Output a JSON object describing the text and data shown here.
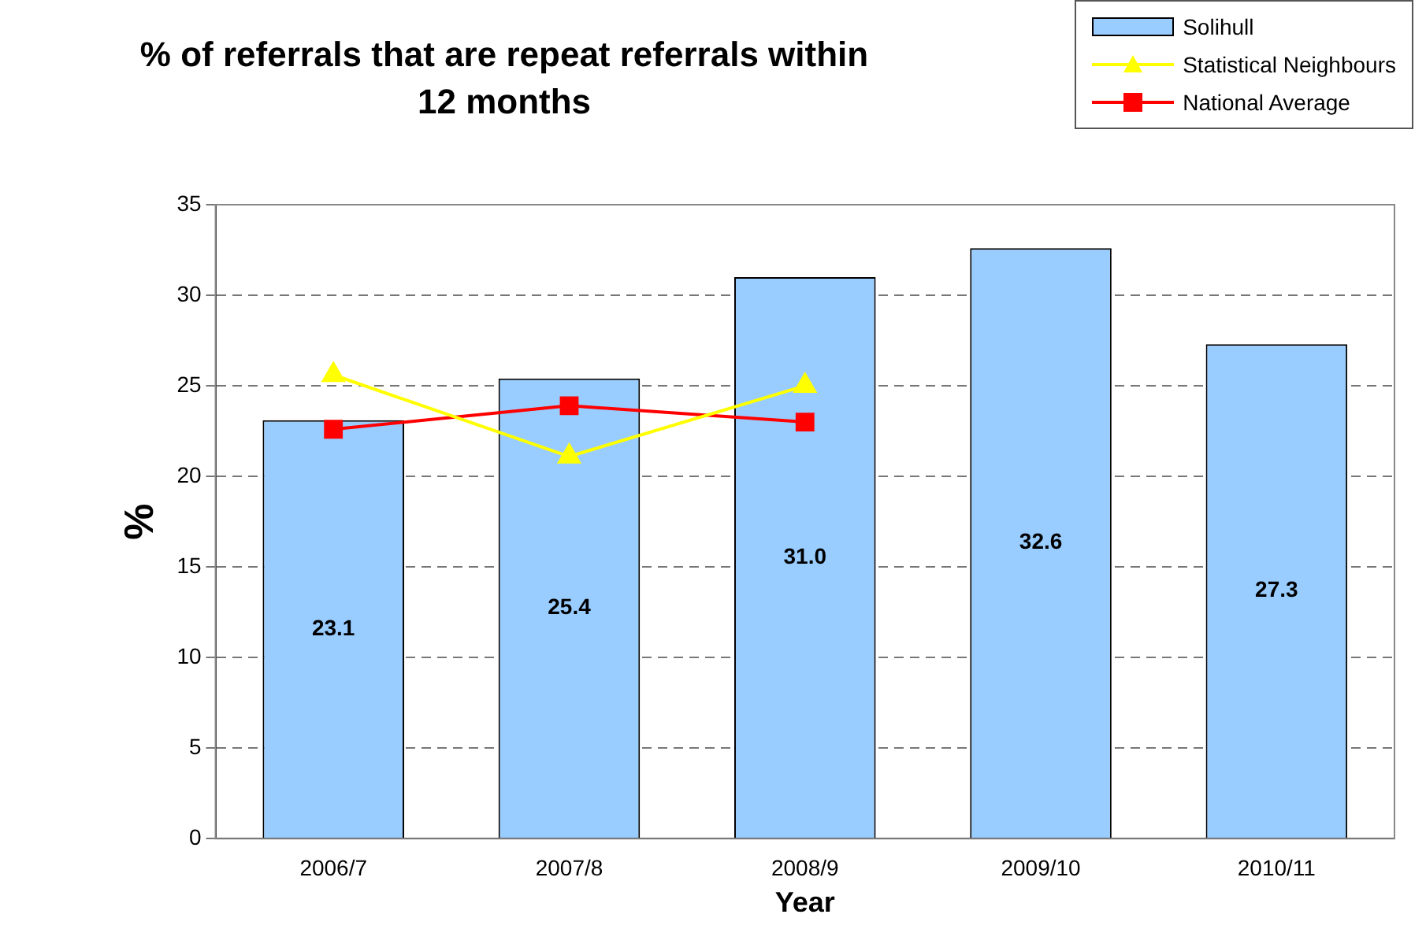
{
  "chart_data": {
    "type": "bar",
    "title": "% of referrals that are repeat referrals within 12 months",
    "xlabel": "Year",
    "ylabel": "%",
    "categories": [
      "2006/7",
      "2007/8",
      "2008/9",
      "2009/10",
      "2010/11"
    ],
    "series": [
      {
        "name": "Solihull",
        "color": "#99ccff",
        "values": [
          23.1,
          25.4,
          31.0,
          32.6,
          27.3
        ],
        "value_labels": [
          "23.1",
          "25.4",
          "31.0",
          "32.6",
          "27.3"
        ]
      },
      {
        "name": "Statistical Neighbours",
        "type": "line",
        "color": "#ffff00",
        "marker": "triangle",
        "values": [
          25.6,
          21.1,
          25.0,
          null,
          null
        ]
      },
      {
        "name": "National Average",
        "type": "line",
        "color": "#ff0000",
        "marker": "square",
        "values": [
          22.6,
          23.9,
          23.0,
          null,
          null
        ]
      }
    ],
    "ylim": [
      0,
      35
    ],
    "yticks": [
      0,
      5,
      10,
      15,
      20,
      25,
      30,
      35
    ],
    "grid": "y",
    "legend": "top right"
  }
}
